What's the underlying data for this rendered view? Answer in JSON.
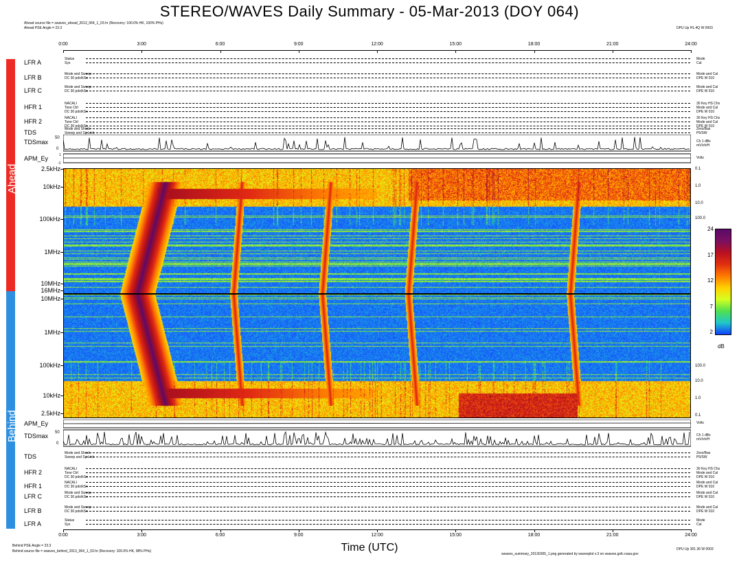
{
  "header": {
    "title": "STEREO/WAVES Daily Summary - 05-Mar-2013 (DOY 064)",
    "ahead_source": "Ahead source file = swaves_ahead_2013_064_1_03.hr (Recovery: 100.0% HK, 100% PHs)",
    "ahead_pse": "Ahead PSE Angle = 23.3",
    "ahead_right": "DPU Up H1.4Q W 0003"
  },
  "time_axis": {
    "ticks": [
      "0:00",
      "3:00",
      "6:00",
      "9:00",
      "12:00",
      "15:00",
      "18:00",
      "21:00",
      "24:00"
    ],
    "title": "Time (UTC)"
  },
  "spacecraft": {
    "ahead": {
      "label": "Ahead",
      "color": "#ee2a24"
    },
    "behind": {
      "label": "Behind",
      "color": "#2e8fe0"
    }
  },
  "ahead_rows": [
    {
      "label": "LFR A",
      "left": [
        "Status",
        "Sys",
        ""
      ],
      "right": [
        "Mode",
        "Cal"
      ]
    },
    {
      "label": "LFR B",
      "left": [
        "Mode and Sweep",
        "DC 30 pdo/kSn",
        ""
      ],
      "right": [
        "Mode and Cal",
        "DPE W 010"
      ]
    },
    {
      "label": "LFR C",
      "left": [
        "Mode and Sweep",
        "DC 30 pdo/kSn",
        ""
      ],
      "right": [
        "Mode and Cal",
        "DPE W 010"
      ]
    },
    {
      "label": "HFR 1",
      "left": [
        "NACALI",
        "Tone Ctrl",
        "DC 30 pdo/kSn"
      ],
      "right": [
        "30 Key HS Chs",
        "Mode and Cal",
        "DPE W 010"
      ]
    },
    {
      "label": "HFR 2",
      "left": [
        "NACALI",
        "Tone Ctrl",
        "DC 30 pdo/kSn"
      ],
      "right": [
        "30 Key HS Chs",
        "Mode and Cal",
        "DPE W 010"
      ]
    },
    {
      "label": "TDS",
      "left": [
        "Mode and Shock",
        "Sweep and Sp Link",
        ""
      ],
      "right": [
        "Zero/Bas",
        "P5/SW"
      ]
    },
    {
      "label": "TDSmax",
      "left": [
        "",
        "",
        ""
      ],
      "right": [
        "Ch 1 dBs",
        "mV/ch/H"
      ]
    },
    {
      "label": "APM_Ey",
      "left": [
        "",
        "",
        ""
      ],
      "right": [
        "Volts",
        ""
      ]
    }
  ],
  "behind_rows": [
    {
      "label": "APM_Ey",
      "left": [
        "",
        "",
        ""
      ],
      "right": [
        "Volts",
        ""
      ]
    },
    {
      "label": "TDSmax",
      "left": [
        "",
        "",
        ""
      ],
      "right": [
        "Ch 1 dBs",
        "mV/ch/H"
      ]
    },
    {
      "label": "TDS",
      "left": [
        "Mode and Shock",
        "Sweep and Sp Link",
        ""
      ],
      "right": [
        "Zero/Bas",
        "P5/SW"
      ]
    },
    {
      "label": "HFR 2",
      "left": [
        "NACALI",
        "Tone Ctrl",
        "DC 30 pdo/kSn"
      ],
      "right": [
        "30 Key HS Chs",
        "Mode and Cal",
        "DPE W 010"
      ]
    },
    {
      "label": "HFR 1",
      "left": [
        "NACALI",
        "DC 30 pdo/kSn",
        ""
      ],
      "right": [
        "Mode and Cal",
        "DPE W 010"
      ]
    },
    {
      "label": "LFR C",
      "left": [
        "Mode and Sweep",
        "DC 30 pdo/kSn",
        ""
      ],
      "right": [
        "Mode and Cal",
        "DPE W 010"
      ]
    },
    {
      "label": "LFR B",
      "left": [
        "Mode and Sweep",
        "DC 30 pdo/kSn",
        ""
      ],
      "right": [
        "Mode and Cal",
        "DPE W 010"
      ]
    },
    {
      "label": "LFR A",
      "left": [
        "Status",
        "Sys",
        ""
      ],
      "right": [
        "Mode",
        "Cal"
      ]
    }
  ],
  "freq_labels_ahead": [
    "2.5kHz",
    "10kHz",
    "100kHz",
    "1MHz",
    "10MHz"
  ],
  "freq_labels_behind": [
    "16MHz",
    "10MHz",
    "1MHz",
    "100kHz",
    "10kHz",
    "2.5kHz"
  ],
  "right_ticks_ahead": [
    "0.1",
    "1.0",
    "10.0",
    "100.0"
  ],
  "right_ticks_behind": [
    "100.0",
    "10.0",
    "1.0",
    "0.1"
  ],
  "tdsmax_ticks": [
    "50",
    "0"
  ],
  "apm_ticks": [
    "1",
    "-1"
  ],
  "colorbar": {
    "ticks": [
      "24",
      "17",
      "12",
      "7",
      "2"
    ],
    "unit": "dB",
    "colors": [
      "#5a0a68",
      "#7a1060",
      "#b81020",
      "#e03010",
      "#ff7a00",
      "#ffd000",
      "#d6ff20",
      "#50e050",
      "#20c8c8",
      "#1040ff"
    ]
  },
  "footer": {
    "behind_pse": "Behind PSE Angle = 23.3",
    "behind_source": "Behind source file = swaves_behind_2013_064_1_03.hr (Recovery: 100.0% HK, 98% PHs)",
    "right_1": "DPU Up 301.36 W 0003",
    "right_2": "swaves_summary_20130305_1.png generated by wavesplot v.3 on swaves.gsfc.nasa.gov"
  },
  "chart_data": {
    "type": "heatmap",
    "title": "STEREO/WAVES Daily Summary - 05-Mar-2013 (DOY 064)",
    "xlabel": "Time (UTC)",
    "x_ticks": [
      "0:00",
      "3:00",
      "6:00",
      "9:00",
      "12:00",
      "15:00",
      "18:00",
      "21:00",
      "24:00"
    ],
    "xlim_hours": [
      0,
      24
    ],
    "panels": [
      {
        "name": "Ahead",
        "y_scale": "log",
        "y_ticks": [
          "2.5kHz",
          "10kHz",
          "100kHz",
          "1MHz",
          "10MHz"
        ],
        "ylim_hz": [
          2500,
          16000000
        ]
      },
      {
        "name": "Behind",
        "y_scale": "log",
        "y_ticks": [
          "16MHz",
          "10MHz",
          "1MHz",
          "100kHz",
          "10kHz",
          "2.5kHz"
        ],
        "ylim_hz": [
          2500,
          16000000
        ]
      }
    ],
    "colorbar_unit": "dB",
    "colorbar_range": [
      2,
      24
    ],
    "colorbar_ticks": [
      24,
      17,
      12,
      7,
      2
    ],
    "features": [
      {
        "description": "Type III burst (both spacecraft)",
        "time_hours": 3.3
      },
      {
        "description": "Type III burst",
        "time_hours": 6.5
      },
      {
        "description": "Type III burst",
        "time_hours": 9.9
      },
      {
        "description": "Type III burst",
        "time_hours": 13.2
      },
      {
        "description": "Type III burst",
        "time_hours": 19.4
      }
    ]
  }
}
